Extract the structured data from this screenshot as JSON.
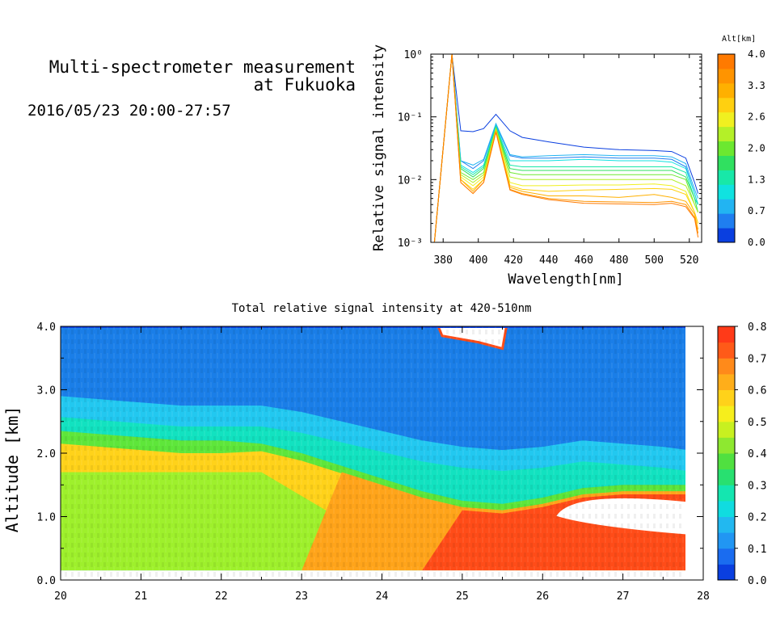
{
  "header": {
    "title_line1": "Multi-spectrometer measurement",
    "title_line2": "at Fukuoka",
    "datetime": "2016/05/23 20:00-27:57"
  },
  "chart_data": [
    {
      "type": "line",
      "xlabel": "Wavelength[nm]",
      "ylabel": "Relative signal intensity",
      "y_scale": "log",
      "xlim": [
        373,
        527
      ],
      "ylim": [
        0.001,
        1
      ],
      "x_ticks": [
        380,
        400,
        420,
        440,
        460,
        480,
        500,
        520
      ],
      "y_tick_labels": [
        "10⁰",
        "10⁻¹",
        "10⁻²",
        "10⁻³"
      ],
      "colorbar": {
        "title": "Alt[km]",
        "labels": [
          "4.0",
          "3.3",
          "2.6",
          "2.0",
          "1.3",
          "0.7",
          "0.0"
        ],
        "range": [
          0.0,
          4.0
        ],
        "colors": [
          "#0a3fe0",
          "#1f7ef0",
          "#22b4f2",
          "#10e2e0",
          "#18e8a8",
          "#30e060",
          "#6ce830",
          "#b4f028",
          "#f0f020",
          "#ffd010",
          "#ffb000",
          "#ff9400",
          "#ff7a00"
        ]
      },
      "x": [
        375,
        385,
        390,
        397,
        403,
        410,
        418,
        425,
        440,
        460,
        480,
        500,
        510,
        518,
        523,
        525
      ],
      "series": [
        {
          "values": [
            0.001,
            1.0,
            0.06,
            0.058,
            0.065,
            0.11,
            0.06,
            0.047,
            0.04,
            0.033,
            0.03,
            0.029,
            0.028,
            0.022,
            0.009,
            0.006
          ]
        },
        {
          "values": [
            0.001,
            1.0,
            0.02,
            0.015,
            0.02,
            0.075,
            0.024,
            0.022,
            0.022,
            0.023,
            0.022,
            0.022,
            0.021,
            0.016,
            0.006,
            0.004
          ]
        },
        {
          "values": [
            0.001,
            1.0,
            0.02,
            0.017,
            0.021,
            0.078,
            0.025,
            0.023,
            0.024,
            0.025,
            0.024,
            0.024,
            0.023,
            0.018,
            0.007,
            0.005
          ]
        },
        {
          "values": [
            0.001,
            1.0,
            0.017,
            0.013,
            0.017,
            0.072,
            0.02,
            0.02,
            0.02,
            0.021,
            0.02,
            0.02,
            0.019,
            0.015,
            0.006,
            0.004
          ]
        },
        {
          "values": [
            0.001,
            1.0,
            0.016,
            0.012,
            0.016,
            0.07,
            0.017,
            0.016,
            0.016,
            0.016,
            0.016,
            0.016,
            0.016,
            0.013,
            0.005,
            0.004
          ]
        },
        {
          "values": [
            0.001,
            1.0,
            0.015,
            0.011,
            0.015,
            0.068,
            0.015,
            0.014,
            0.014,
            0.014,
            0.014,
            0.014,
            0.014,
            0.011,
            0.005,
            0.003
          ]
        },
        {
          "values": [
            0.001,
            1.0,
            0.013,
            0.01,
            0.013,
            0.066,
            0.013,
            0.012,
            0.012,
            0.012,
            0.012,
            0.012,
            0.012,
            0.01,
            0.004,
            0.003
          ]
        },
        {
          "values": [
            0.001,
            1.0,
            0.012,
            0.009,
            0.012,
            0.064,
            0.011,
            0.01,
            0.01,
            0.01,
            0.01,
            0.01,
            0.01,
            0.008,
            0.004,
            0.003
          ]
        },
        {
          "values": [
            0.001,
            1.0,
            0.011,
            0.008,
            0.011,
            0.062,
            0.009,
            0.008,
            0.008,
            0.0082,
            0.0082,
            0.0085,
            0.008,
            0.0065,
            0.003,
            0.002
          ]
        },
        {
          "values": [
            0.001,
            1.0,
            0.01,
            0.007,
            0.01,
            0.06,
            0.008,
            0.007,
            0.0065,
            0.0068,
            0.007,
            0.0072,
            0.007,
            0.0058,
            0.003,
            0.002
          ]
        },
        {
          "values": [
            0.001,
            1.0,
            0.01,
            0.0065,
            0.01,
            0.06,
            0.0075,
            0.0065,
            0.0055,
            0.0055,
            0.0052,
            0.0058,
            0.0052,
            0.0045,
            0.0028,
            0.0016
          ]
        },
        {
          "values": [
            0.001,
            1.0,
            0.009,
            0.006,
            0.009,
            0.058,
            0.007,
            0.006,
            0.005,
            0.0045,
            0.0044,
            0.0043,
            0.0045,
            0.004,
            0.0025,
            0.0014
          ]
        },
        {
          "values": [
            0.001,
            1.0,
            0.009,
            0.006,
            0.009,
            0.057,
            0.0068,
            0.0058,
            0.0048,
            0.0042,
            0.0041,
            0.004,
            0.0042,
            0.0037,
            0.0024,
            0.0012
          ]
        }
      ]
    },
    {
      "type": "heatmap",
      "title": "Total relative signal intensity at 420-510nm",
      "xlabel": "",
      "ylabel": "Altitude [km]",
      "xlim": [
        20,
        28
      ],
      "ylim": [
        0.0,
        4.0
      ],
      "x_ticks": [
        "20",
        "21",
        "22",
        "23",
        "24",
        "25",
        "26",
        "27",
        "28"
      ],
      "y_ticks": [
        "0.0",
        "1.0",
        "2.0",
        "3.0",
        "4.0"
      ],
      "data_x_end": 27.8,
      "colorbar": {
        "labels": [
          "0.8",
          "0.7",
          "0.6",
          "0.5",
          "0.4",
          "0.3",
          "0.2",
          "0.1",
          "0.0"
        ],
        "range": [
          0.0,
          0.8
        ],
        "colors": [
          "#0a3fe0",
          "#1a6cf0",
          "#2196f3",
          "#22b8f0",
          "#10dce0",
          "#14e6b0",
          "#28e070",
          "#50e040",
          "#8ee830",
          "#c8f020",
          "#f6ee1c",
          "#ffd21a",
          "#ffae1a",
          "#ff8a1a",
          "#ff5a18",
          "#ff3a18"
        ]
      },
      "columns_time": [
        20.0,
        20.5,
        21.0,
        21.5,
        22.0,
        22.5,
        23.0,
        23.5,
        24.0,
        24.5,
        25.0,
        25.5,
        26.0,
        26.5,
        27.0,
        27.5,
        27.8
      ],
      "boundary_low_km": [
        2.35,
        2.3,
        2.25,
        2.2,
        2.2,
        2.15,
        2.0,
        1.8,
        1.6,
        1.4,
        1.25,
        1.2,
        1.3,
        1.45,
        1.5,
        1.5,
        1.5
      ],
      "boundary_high_km": [
        2.45,
        2.4,
        2.35,
        2.3,
        2.3,
        2.3,
        2.2,
        2.05,
        1.9,
        1.75,
        1.65,
        1.6,
        1.65,
        1.75,
        1.7,
        1.65,
        1.6
      ]
    }
  ]
}
